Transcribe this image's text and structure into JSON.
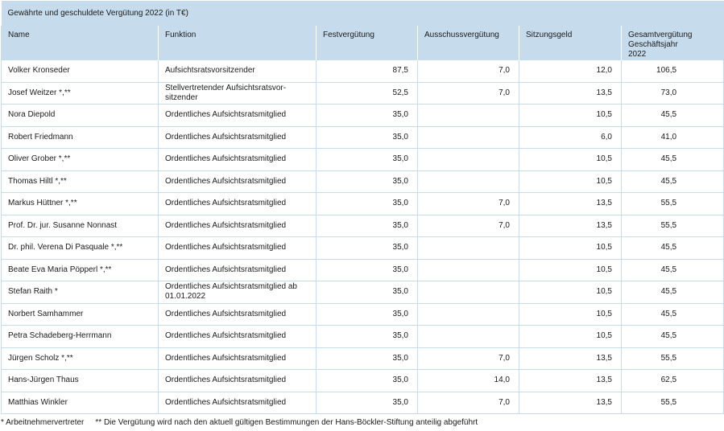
{
  "title": "Gewährte und geschuldete Vergütung 2022 (in T€)",
  "columns": [
    "Name",
    "Funktion",
    "Festvergütung",
    "Ausschussvergütung",
    "Sitzungsgeld",
    "Gesamtvergütung\nGeschäftsjahr 2022"
  ],
  "rows": [
    [
      "Volker Kronseder",
      "Aufsichtsratsvorsitzender",
      "87,5",
      "7,0",
      "12,0",
      "106,5"
    ],
    [
      "Josef Weitzer *,**",
      "Stellvertretender Aufsichtsratsvor-\nsitzender",
      "52,5",
      "7,0",
      "13,5",
      "73,0"
    ],
    [
      "Nora Diepold",
      "Ordentliches Aufsichtsratsmitglied",
      "35,0",
      "",
      "10,5",
      "45,5"
    ],
    [
      "Robert Friedmann",
      "Ordentliches Aufsichtsratsmitglied",
      "35,0",
      "",
      "6,0",
      "41,0"
    ],
    [
      "Oliver Grober *,**",
      "Ordentliches Aufsichtsratsmitglied",
      "35,0",
      "",
      "10,5",
      "45,5"
    ],
    [
      "Thomas Hiltl *,**",
      "Ordentliches Aufsichtsratsmitglied",
      "35,0",
      "",
      "10,5",
      "45,5"
    ],
    [
      "Markus Hüttner *,**",
      "Ordentliches Aufsichtsratsmitglied",
      "35,0",
      "7,0",
      "13,5",
      "55,5"
    ],
    [
      "Prof. Dr. jur. Susanne Nonnast",
      "Ordentliches Aufsichtsratsmitglied",
      "35,0",
      "7,0",
      "13,5",
      "55,5"
    ],
    [
      "Dr. phil. Verena Di Pasquale *,**",
      "Ordentliches Aufsichtsratsmitglied",
      "35,0",
      "",
      "10,5",
      "45,5"
    ],
    [
      "Beate Eva Maria Pöpperl *,**",
      "Ordentliches Aufsichtsratsmitglied",
      "35,0",
      "",
      "10,5",
      "45,5"
    ],
    [
      "Stefan Raith *",
      "Ordentliches Aufsichtsratsmitglied ab\n01.01.2022",
      "35,0",
      "",
      "10,5",
      "45,5"
    ],
    [
      "Norbert Samhammer",
      "Ordentliches Aufsichtsratsmitglied",
      "35,0",
      "",
      "10,5",
      "45,5"
    ],
    [
      "Petra Schadeberg-Herrmann",
      "Ordentliches Aufsichtsratsmitglied",
      "35,0",
      "",
      "10,5",
      "45,5"
    ],
    [
      "Jürgen Scholz *,**",
      "Ordentliches Aufsichtsratsmitglied",
      "35,0",
      "7,0",
      "13,5",
      "55,5"
    ],
    [
      "Hans-Jürgen Thaus",
      "Ordentliches Aufsichtsratsmitglied",
      "35,0",
      "14,0",
      "13,5",
      "62,5"
    ],
    [
      "Matthias Winkler",
      "Ordentliches Aufsichtsratsmitglied",
      "35,0",
      "7,0",
      "13,5",
      "55,5"
    ]
  ],
  "footnotes": {
    "employee": "* Arbeitnehmervertreter",
    "boeckler": "** Die Vergütung wird nach den aktuell gültigen Bestimmungen der Hans-Böckler-Stiftung anteilig abgeführt"
  },
  "colors": {
    "header_bg": "#c6dcec",
    "grid": "#c6dcec",
    "text": "#1a1a1a"
  }
}
